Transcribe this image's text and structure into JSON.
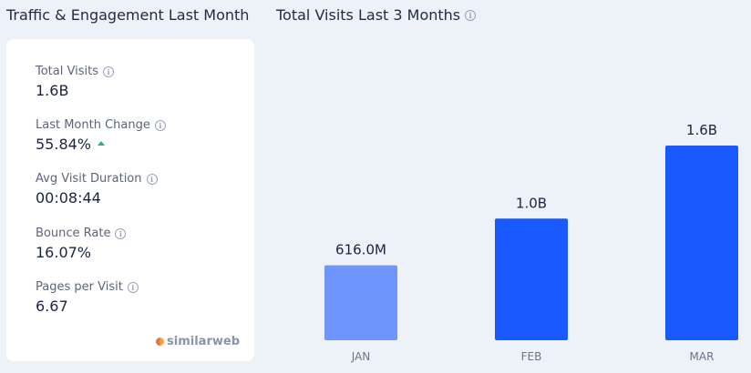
{
  "left_panel": {
    "title": "Traffic & Engagement Last Month",
    "metrics": [
      {
        "label": "Total Visits",
        "value": "1.6B"
      },
      {
        "label": "Last Month Change",
        "value": "55.84%",
        "trend": "up"
      },
      {
        "label": "Avg Visit Duration",
        "value": "00:08:44"
      },
      {
        "label": "Bounce Rate",
        "value": "16.07%"
      },
      {
        "label": "Pages per Visit",
        "value": "6.67"
      }
    ],
    "brand": "similarweb"
  },
  "right_panel": {
    "title": "Total Visits Last 3 Months"
  },
  "colors": {
    "background": "#edf1f8",
    "card": "#ffffff",
    "bar_jan": "#6e95fb",
    "bar_primary": "#195afe",
    "trend_up": "#2ab27b"
  },
  "icons": {
    "info": "info-circle-icon",
    "trend": "triangle-up-icon",
    "brand": "similarweb-logo-icon"
  },
  "chart_data": {
    "type": "bar",
    "title": "Total Visits Last 3 Months",
    "categories": [
      "JAN",
      "FEB",
      "MAR"
    ],
    "values": [
      616000000,
      1000000000,
      1600000000
    ],
    "value_labels": [
      "616.0M",
      "1.0B",
      "1.6B"
    ],
    "bar_colors": [
      "#6e95fb",
      "#195afe",
      "#195afe"
    ],
    "ylim": [
      0,
      1600000000
    ],
    "grid": false,
    "legend": "none"
  }
}
